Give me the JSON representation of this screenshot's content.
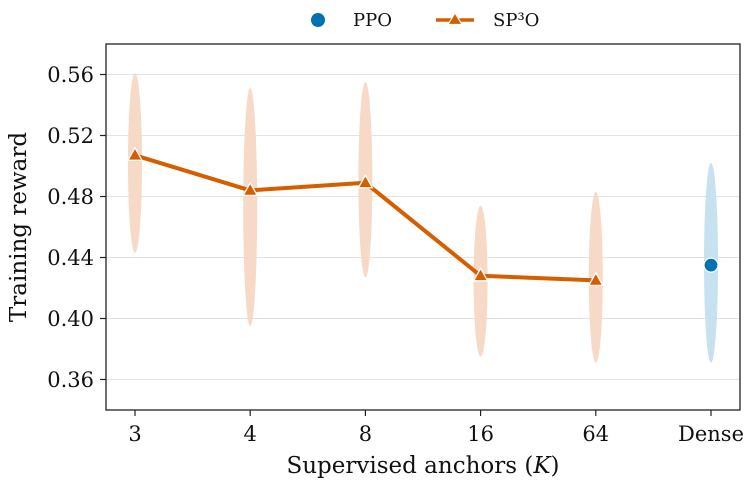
{
  "chart_data": {
    "type": "line",
    "categories": [
      "3",
      "4",
      "8",
      "16",
      "64",
      "Dense"
    ],
    "xlabel_prefix": "Supervised anchors (",
    "xlabel_var": "K",
    "xlabel_suffix": ")",
    "ylabel": "Training reward",
    "ylim": [
      0.34,
      0.58
    ],
    "yticks": [
      0.36,
      0.4,
      0.44,
      0.48,
      0.52,
      0.56
    ],
    "grid": "horizontal",
    "legend_position": "top-center",
    "series": [
      {
        "name": "SP³O",
        "marker": "triangle",
        "color": "#d55e00",
        "x": [
          "3",
          "4",
          "8",
          "16",
          "64"
        ],
        "values": [
          0.507,
          0.484,
          0.489,
          0.428,
          0.425
        ],
        "spread_low": [
          0.443,
          0.395,
          0.427,
          0.375,
          0.371
        ],
        "spread_high": [
          0.561,
          0.551,
          0.555,
          0.474,
          0.483
        ]
      },
      {
        "name": "PPO",
        "marker": "circle",
        "color": "#0072b2",
        "x": [
          "Dense"
        ],
        "values": [
          0.435
        ],
        "spread_low": [
          0.371
        ],
        "spread_high": [
          0.502
        ]
      }
    ]
  }
}
